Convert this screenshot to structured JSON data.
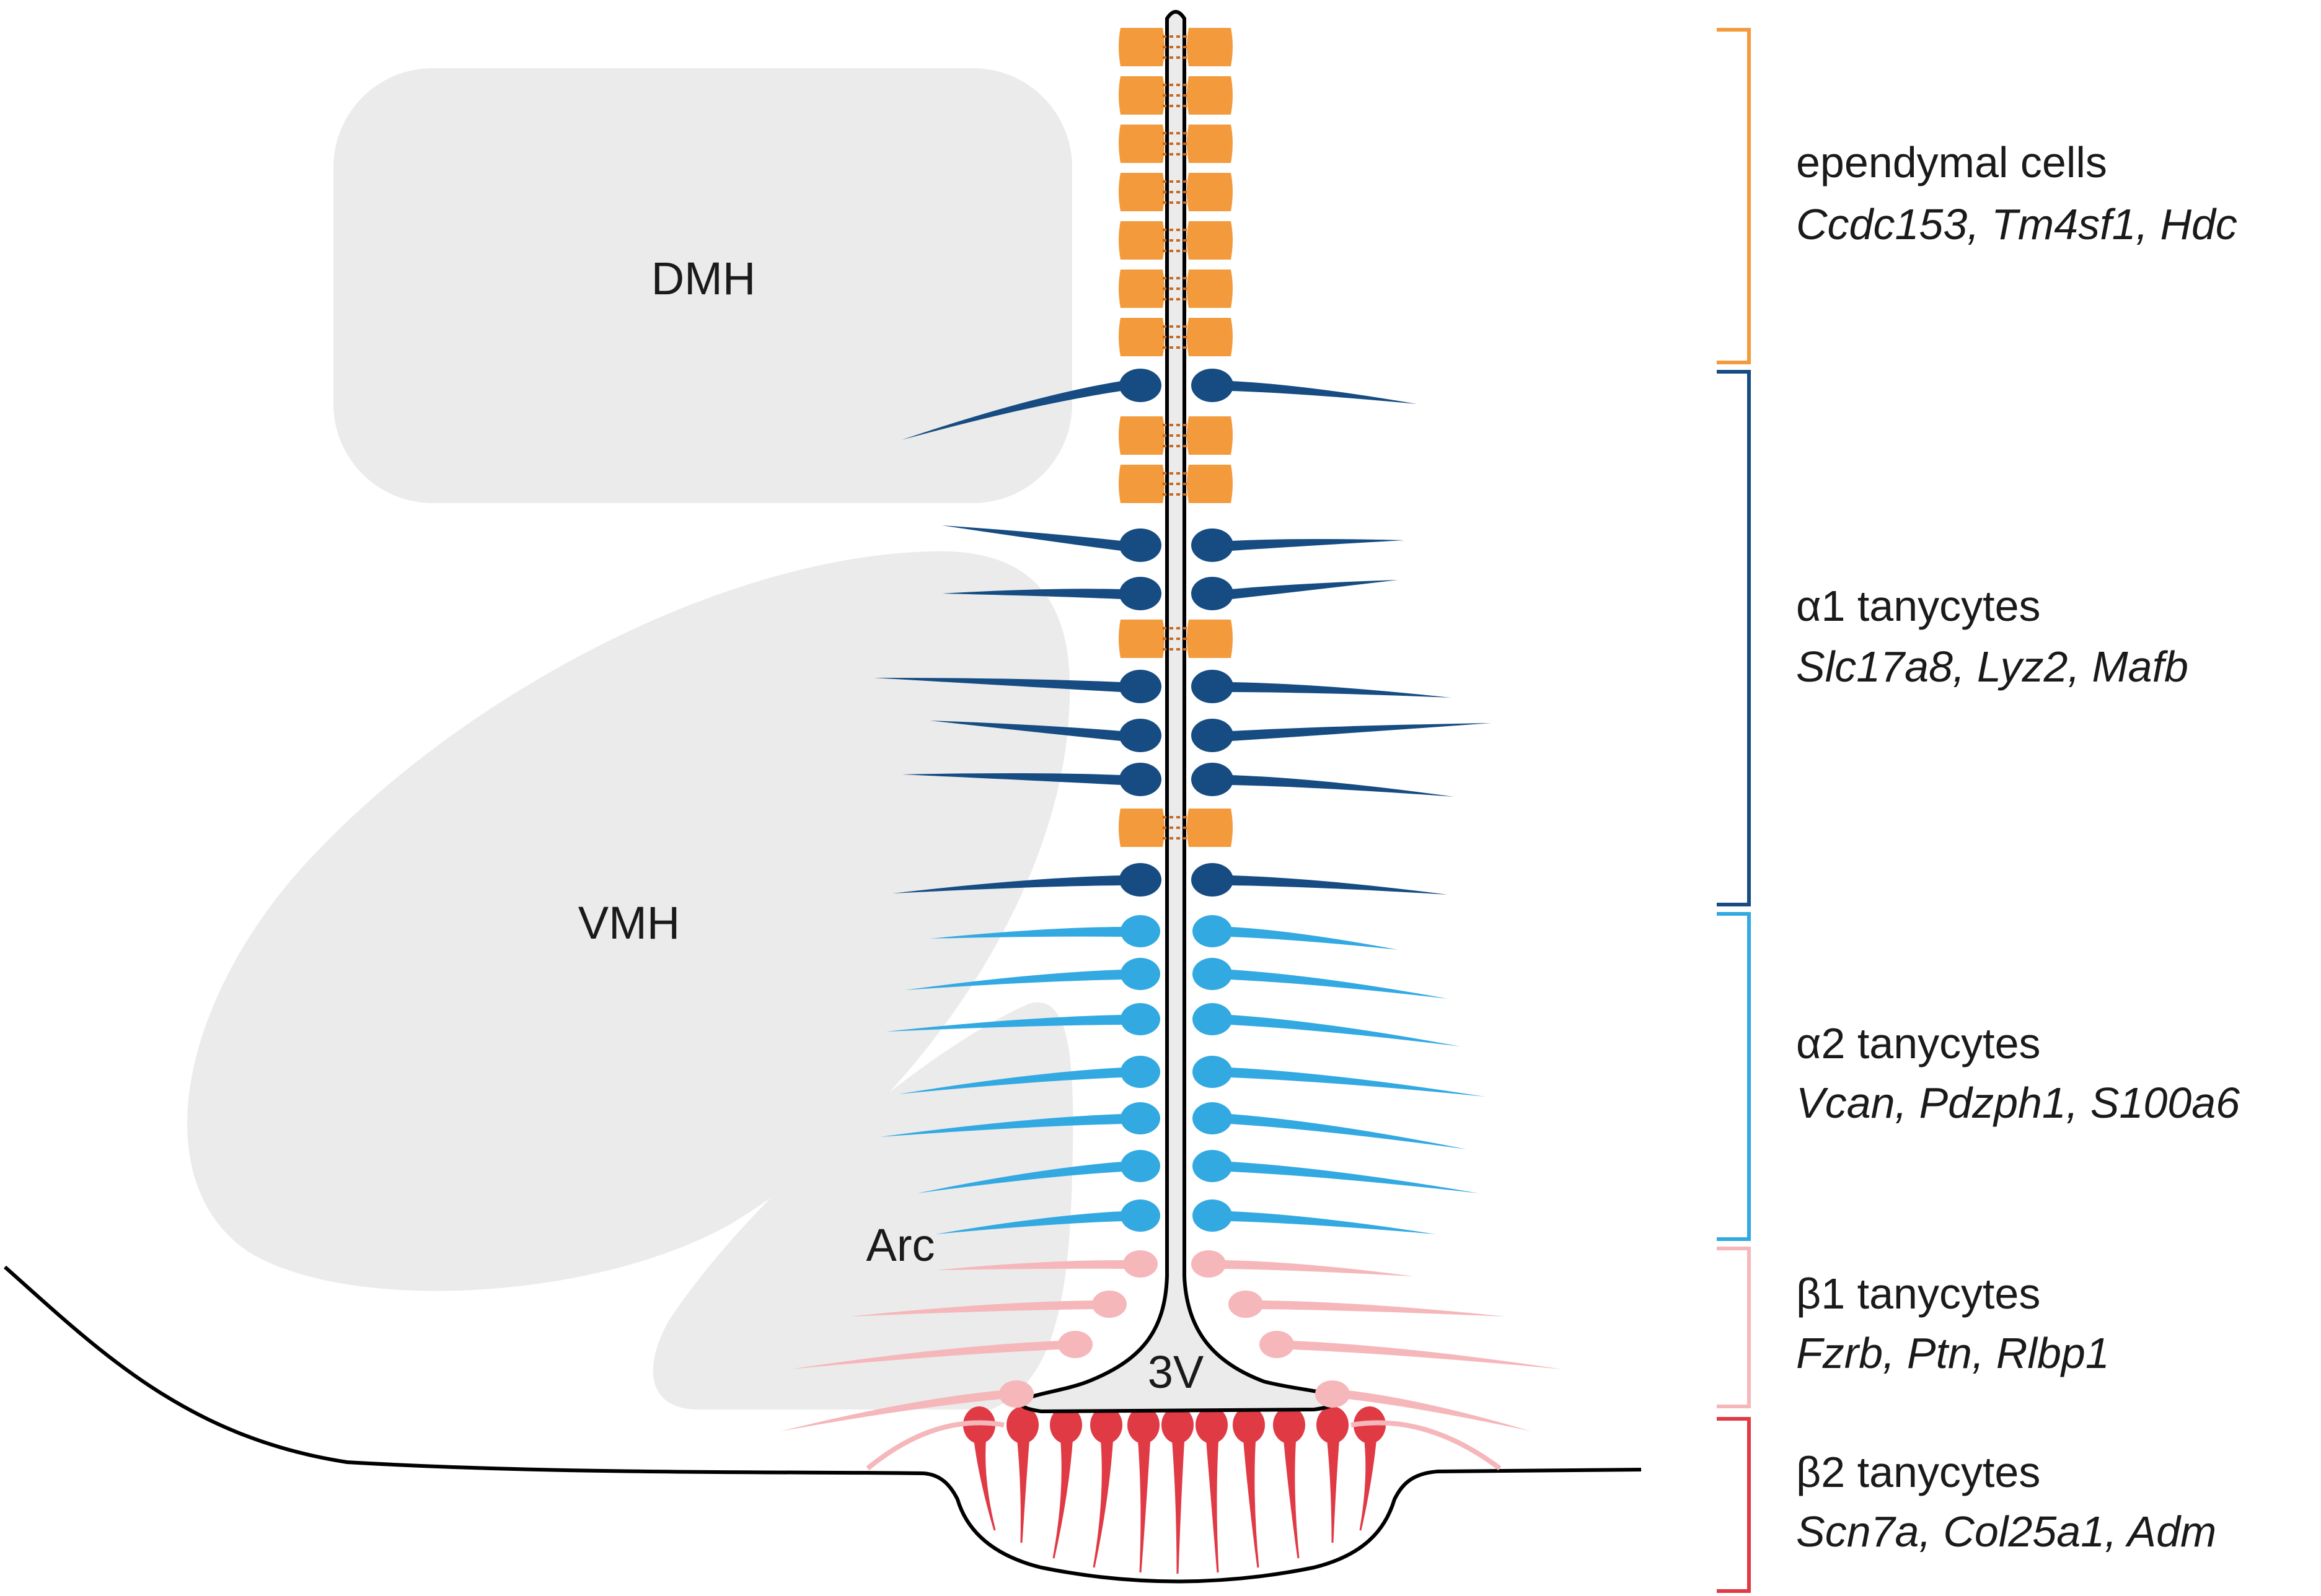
{
  "regions": {
    "dmh": "DMH",
    "vmh": "VMH",
    "arc": "Arc",
    "third_ventricle": "3V"
  },
  "cell_classes": [
    {
      "key": "ependymal",
      "title": "ependymal cells",
      "genes": "Ccdc153, Tm4sf1, Hdc",
      "color": "#F39A3C"
    },
    {
      "key": "alpha1",
      "title": "α1 tanycytes",
      "genes": "Slc17a8, Lyz2, Mafb",
      "color": "#164C82"
    },
    {
      "key": "alpha2",
      "title": "α2 tanycytes",
      "genes": "Vcan, Pdzph1, S100a6",
      "color": "#33A9E2"
    },
    {
      "key": "beta1",
      "title": "β1 tanycytes",
      "genes": "Fzrb, Ptn, Rlbp1",
      "color": "#F5B7BA"
    },
    {
      "key": "beta2",
      "title": "β2 tanycytes",
      "genes": "Scn7a, Col25a1, Adm",
      "color": "#E03A45"
    }
  ],
  "colors": {
    "nucleus_fill": "#EBEBEB",
    "outline": "#000000",
    "background": "#FFFFFF"
  }
}
